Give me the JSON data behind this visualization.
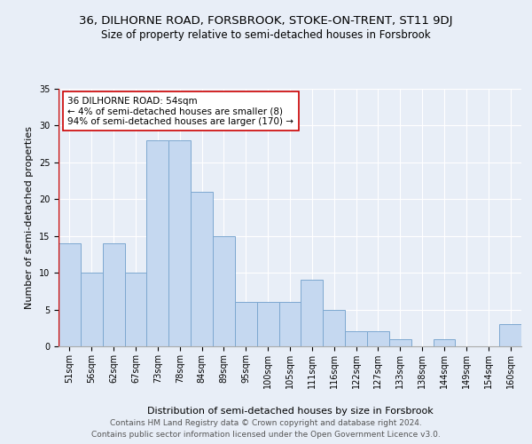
{
  "title": "36, DILHORNE ROAD, FORSBROOK, STOKE-ON-TRENT, ST11 9DJ",
  "subtitle": "Size of property relative to semi-detached houses in Forsbrook",
  "xlabel": "Distribution of semi-detached houses by size in Forsbrook",
  "ylabel": "Number of semi-detached properties",
  "categories": [
    "51sqm",
    "56sqm",
    "62sqm",
    "67sqm",
    "73sqm",
    "78sqm",
    "84sqm",
    "89sqm",
    "95sqm",
    "100sqm",
    "105sqm",
    "111sqm",
    "116sqm",
    "122sqm",
    "127sqm",
    "133sqm",
    "138sqm",
    "144sqm",
    "149sqm",
    "154sqm",
    "160sqm"
  ],
  "values": [
    14,
    10,
    14,
    10,
    28,
    28,
    21,
    15,
    6,
    6,
    6,
    9,
    5,
    2,
    2,
    1,
    0,
    1,
    0,
    0,
    3
  ],
  "bar_color": "#c5d8f0",
  "bar_edge_color": "#7da8d0",
  "highlight_line_color": "#cc0000",
  "annotation_text": "36 DILHORNE ROAD: 54sqm\n← 4% of semi-detached houses are smaller (8)\n94% of semi-detached houses are larger (170) →",
  "annotation_box_color": "#ffffff",
  "annotation_box_edge_color": "#cc0000",
  "ylim": [
    0,
    35
  ],
  "yticks": [
    0,
    5,
    10,
    15,
    20,
    25,
    30,
    35
  ],
  "background_color": "#e8eef7",
  "plot_background_color": "#e8eef7",
  "footer_line1": "Contains HM Land Registry data © Crown copyright and database right 2024.",
  "footer_line2": "Contains public sector information licensed under the Open Government Licence v3.0.",
  "title_fontsize": 9.5,
  "subtitle_fontsize": 8.5,
  "axis_label_fontsize": 8,
  "tick_fontsize": 7,
  "annotation_fontsize": 7.5,
  "footer_fontsize": 6.5
}
